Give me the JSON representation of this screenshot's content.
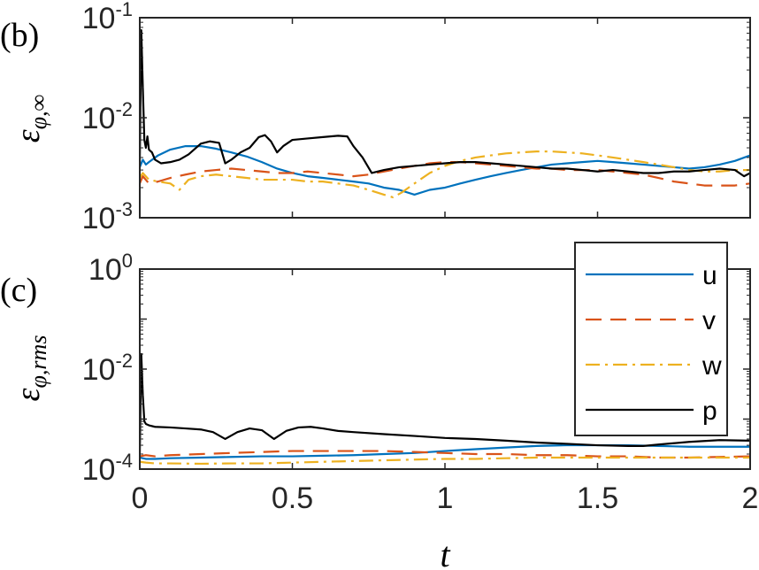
{
  "chart_data": [
    {
      "type": "line",
      "panel_label": "(b)",
      "ylabel": "ε",
      "ylabel_sub": "φ,∞",
      "xlabel": "",
      "yscale": "log",
      "ylim": [
        0.001,
        0.1
      ],
      "xlim": [
        0,
        2
      ],
      "x_ticks": [
        0,
        0.5,
        1,
        1.5,
        2
      ],
      "y_ticks": [
        {
          "base": "10",
          "exp": "-1",
          "value": 0.1
        },
        {
          "base": "10",
          "exp": "-2",
          "value": 0.01
        },
        {
          "base": "10",
          "exp": "-3",
          "value": 0.001
        }
      ],
      "series": [
        {
          "name": "u",
          "color": "#0072BD",
          "dash": "",
          "x": [
            0,
            0.01,
            0.02,
            0.03,
            0.06,
            0.1,
            0.15,
            0.2,
            0.25,
            0.3,
            0.35,
            0.4,
            0.45,
            0.5,
            0.55,
            0.6,
            0.65,
            0.7,
            0.75,
            0.8,
            0.85,
            0.9,
            0.95,
            1.0,
            1.05,
            1.1,
            1.15,
            1.2,
            1.25,
            1.3,
            1.35,
            1.4,
            1.45,
            1.5,
            1.55,
            1.6,
            1.65,
            1.7,
            1.75,
            1.8,
            1.85,
            1.9,
            1.95,
            2.0
          ],
          "y": [
            0.0032,
            0.0038,
            0.0034,
            0.0036,
            0.0042,
            0.0048,
            0.0052,
            0.0052,
            0.0049,
            0.0045,
            0.0041,
            0.0036,
            0.0031,
            0.0028,
            0.0026,
            0.0025,
            0.0024,
            0.0023,
            0.0022,
            0.002,
            0.0019,
            0.0017,
            0.0019,
            0.002,
            0.0022,
            0.0024,
            0.0026,
            0.0028,
            0.003,
            0.0032,
            0.0034,
            0.0035,
            0.0036,
            0.0037,
            0.0036,
            0.0035,
            0.0034,
            0.0033,
            0.0032,
            0.0031,
            0.0032,
            0.0034,
            0.0037,
            0.0042
          ]
        },
        {
          "name": "v",
          "color": "#D95319",
          "dash": "18,10",
          "x": [
            0,
            0.01,
            0.03,
            0.06,
            0.1,
            0.15,
            0.2,
            0.25,
            0.3,
            0.35,
            0.4,
            0.45,
            0.5,
            0.55,
            0.6,
            0.65,
            0.7,
            0.75,
            0.8,
            0.85,
            0.9,
            0.95,
            1.0,
            1.05,
            1.1,
            1.15,
            1.2,
            1.25,
            1.3,
            1.35,
            1.4,
            1.45,
            1.5,
            1.55,
            1.6,
            1.65,
            1.7,
            1.75,
            1.8,
            1.85,
            1.9,
            1.95,
            2.0
          ],
          "y": [
            0.0022,
            0.0026,
            0.0022,
            0.0023,
            0.0025,
            0.0027,
            0.0029,
            0.003,
            0.0031,
            0.003,
            0.0029,
            0.0028,
            0.0028,
            0.0029,
            0.0028,
            0.0027,
            0.0026,
            0.0027,
            0.0029,
            0.0031,
            0.0033,
            0.0035,
            0.0036,
            0.0036,
            0.0035,
            0.0034,
            0.0033,
            0.0032,
            0.0031,
            0.0031,
            0.003,
            0.003,
            0.003,
            0.0029,
            0.0028,
            0.0027,
            0.0025,
            0.0023,
            0.0022,
            0.0021,
            0.0021,
            0.0021,
            0.0022
          ]
        },
        {
          "name": "w",
          "color": "#EDB120",
          "dash": "16,6,3,6",
          "x": [
            0,
            0.01,
            0.03,
            0.06,
            0.1,
            0.13,
            0.16,
            0.2,
            0.25,
            0.3,
            0.35,
            0.4,
            0.45,
            0.5,
            0.55,
            0.6,
            0.65,
            0.7,
            0.75,
            0.8,
            0.83,
            0.86,
            0.9,
            0.95,
            1.0,
            1.05,
            1.1,
            1.15,
            1.2,
            1.25,
            1.3,
            1.35,
            1.4,
            1.45,
            1.5,
            1.55,
            1.6,
            1.65,
            1.7,
            1.75,
            1.8,
            1.85,
            1.9,
            1.95,
            2.0
          ],
          "y": [
            0.0025,
            0.0028,
            0.0024,
            0.0023,
            0.0022,
            0.0019,
            0.0024,
            0.0026,
            0.0027,
            0.0026,
            0.0025,
            0.0024,
            0.0024,
            0.0024,
            0.0023,
            0.0023,
            0.0022,
            0.0021,
            0.0019,
            0.0017,
            0.0016,
            0.0018,
            0.0022,
            0.0028,
            0.0033,
            0.0037,
            0.004,
            0.0042,
            0.0044,
            0.0045,
            0.0046,
            0.0046,
            0.0045,
            0.0044,
            0.0042,
            0.004,
            0.0038,
            0.0036,
            0.0034,
            0.0032,
            0.003,
            0.0029,
            0.0029,
            0.003,
            0.003
          ]
        },
        {
          "name": "p",
          "color": "#000000",
          "dash": "",
          "x": [
            0,
            0.005,
            0.01,
            0.015,
            0.02,
            0.025,
            0.03,
            0.04,
            0.05,
            0.07,
            0.1,
            0.13,
            0.16,
            0.2,
            0.23,
            0.26,
            0.28,
            0.3,
            0.33,
            0.36,
            0.39,
            0.41,
            0.43,
            0.45,
            0.47,
            0.5,
            0.55,
            0.6,
            0.65,
            0.68,
            0.7,
            0.73,
            0.76,
            0.8,
            0.85,
            0.9,
            0.95,
            1.0,
            1.05,
            1.1,
            1.15,
            1.2,
            1.25,
            1.3,
            1.35,
            1.4,
            1.45,
            1.5,
            1.55,
            1.6,
            1.65,
            1.7,
            1.75,
            1.8,
            1.85,
            1.9,
            1.95,
            1.98,
            2.0
          ],
          "y": [
            0.0035,
            0.075,
            0.02,
            0.006,
            0.005,
            0.0065,
            0.0048,
            0.0045,
            0.0038,
            0.0035,
            0.0036,
            0.0038,
            0.0043,
            0.0055,
            0.0058,
            0.0056,
            0.0035,
            0.0038,
            0.0045,
            0.005,
            0.0064,
            0.0067,
            0.0058,
            0.0045,
            0.0052,
            0.006,
            0.0062,
            0.0064,
            0.0066,
            0.0065,
            0.0052,
            0.004,
            0.0028,
            0.003,
            0.0032,
            0.0033,
            0.0034,
            0.0035,
            0.0036,
            0.0036,
            0.0035,
            0.0034,
            0.0033,
            0.0032,
            0.0031,
            0.0031,
            0.003,
            0.0029,
            0.003,
            0.0029,
            0.0028,
            0.0028,
            0.0029,
            0.0029,
            0.003,
            0.0031,
            0.003,
            0.0026,
            0.0028
          ]
        }
      ]
    },
    {
      "type": "line",
      "panel_label": "(c)",
      "ylabel": "ε",
      "ylabel_sub": "φ,rms",
      "xlabel": "t",
      "yscale": "log",
      "ylim": [
        0.0001,
        1
      ],
      "xlim": [
        0,
        2
      ],
      "x_ticks": [
        0,
        0.5,
        1,
        1.5,
        2
      ],
      "y_ticks": [
        {
          "base": "10",
          "exp": "0",
          "value": 1
        },
        {
          "base": "10",
          "exp": "-2",
          "value": 0.01
        },
        {
          "base": "10",
          "exp": "-4",
          "value": 0.0001
        }
      ],
      "legend": {
        "position": "top-right",
        "entries": [
          "u",
          "v",
          "w",
          "p"
        ]
      },
      "series": [
        {
          "name": "u",
          "color": "#0072BD",
          "dash": "",
          "x": [
            0,
            0.02,
            0.05,
            0.1,
            0.2,
            0.3,
            0.4,
            0.5,
            0.6,
            0.7,
            0.8,
            0.9,
            1.0,
            1.1,
            1.2,
            1.3,
            1.4,
            1.5,
            1.6,
            1.7,
            1.8,
            1.9,
            2.0
          ],
          "y": [
            0.00017,
            0.00016,
            0.00016,
            0.000165,
            0.00017,
            0.000175,
            0.00018,
            0.00018,
            0.000185,
            0.00019,
            0.0002,
            0.00021,
            0.00023,
            0.00025,
            0.00027,
            0.00029,
            0.0003,
            0.0003,
            0.0003,
            0.00029,
            0.00028,
            0.00028,
            0.00028
          ]
        },
        {
          "name": "v",
          "color": "#D95319",
          "dash": "18,10",
          "x": [
            0,
            0.02,
            0.05,
            0.1,
            0.2,
            0.3,
            0.4,
            0.5,
            0.6,
            0.7,
            0.8,
            0.9,
            1.0,
            1.1,
            1.2,
            1.3,
            1.4,
            1.5,
            1.6,
            1.7,
            1.8,
            1.9,
            2.0
          ],
          "y": [
            0.00018,
            0.00019,
            0.00018,
            0.00019,
            0.0002,
            0.00021,
            0.00022,
            0.00023,
            0.00023,
            0.00023,
            0.00023,
            0.00022,
            0.00021,
            0.0002,
            0.0002,
            0.00019,
            0.00019,
            0.00018,
            0.00018,
            0.00017,
            0.00017,
            0.000175,
            0.00018
          ]
        },
        {
          "name": "w",
          "color": "#EDB120",
          "dash": "16,6,3,6",
          "x": [
            0,
            0.02,
            0.05,
            0.1,
            0.2,
            0.3,
            0.4,
            0.5,
            0.6,
            0.7,
            0.8,
            0.9,
            1.0,
            1.1,
            1.2,
            1.3,
            1.4,
            1.5,
            1.6,
            1.7,
            1.8,
            1.9,
            2.0
          ],
          "y": [
            0.00014,
            0.000135,
            0.00013,
            0.00013,
            0.000128,
            0.00013,
            0.00013,
            0.000135,
            0.00014,
            0.000145,
            0.00015,
            0.000155,
            0.00016,
            0.00016,
            0.000165,
            0.00017,
            0.00017,
            0.00017,
            0.00017,
            0.00017,
            0.00017,
            0.00017,
            0.00017
          ]
        },
        {
          "name": "p",
          "color": "#000000",
          "dash": "",
          "x": [
            0,
            0.005,
            0.01,
            0.015,
            0.02,
            0.03,
            0.05,
            0.1,
            0.15,
            0.2,
            0.24,
            0.28,
            0.32,
            0.36,
            0.4,
            0.44,
            0.48,
            0.52,
            0.56,
            0.6,
            0.65,
            0.7,
            0.8,
            0.9,
            1.0,
            1.1,
            1.2,
            1.3,
            1.4,
            1.5,
            1.6,
            1.65,
            1.7,
            1.8,
            1.9,
            2.0
          ],
          "y": [
            0.0002,
            0.02,
            0.003,
            0.0009,
            0.0008,
            0.00075,
            0.0007,
            0.00068,
            0.00065,
            0.00062,
            0.00055,
            0.0004,
            0.00055,
            0.00065,
            0.0006,
            0.0004,
            0.00058,
            0.00068,
            0.0007,
            0.00065,
            0.00058,
            0.00055,
            0.0005,
            0.00046,
            0.00042,
            0.0004,
            0.00037,
            0.00034,
            0.00032,
            0.0003,
            0.00029,
            0.00029,
            0.00031,
            0.00035,
            0.00038,
            0.00037
          ]
        }
      ]
    }
  ]
}
